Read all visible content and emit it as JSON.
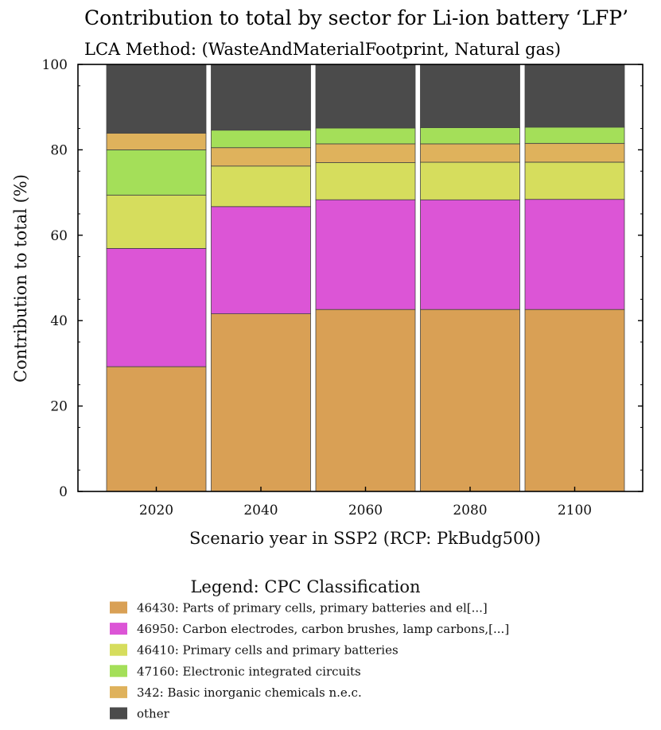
{
  "chart_data": {
    "type": "bar",
    "stacked": true,
    "title": "Contribution to total by sector for Li-ion battery ‘LFP’",
    "subtitle": "LCA Method: (WasteAndMaterialFootprint, Natural gas)",
    "xlabel": "Scenario year in SSP2 (RCP: PkBudg500)",
    "ylabel": "Contribution to total (%)",
    "ylim": [
      0,
      100
    ],
    "yticks": [
      0,
      20,
      40,
      60,
      80,
      100
    ],
    "categories": [
      "2020",
      "2040",
      "2060",
      "2080",
      "2100"
    ],
    "legend_title": "Legend: CPC Classification",
    "legend_position": "bottom",
    "series": [
      {
        "name": "46430: Parts of primary cells, primary batteries and el[...]",
        "color": "#d9a055",
        "values": [
          29.2,
          41.6,
          42.6,
          42.6,
          42.6
        ]
      },
      {
        "name": "46950: Carbon electrodes, carbon brushes, lamp carbons,[...]",
        "color": "#dc55d6",
        "values": [
          27.7,
          25.1,
          25.7,
          25.7,
          25.8
        ]
      },
      {
        "name": "46410: Primary cells and primary batteries",
        "color": "#d6dd5d",
        "values": [
          12.5,
          9.5,
          8.7,
          8.8,
          8.7
        ]
      },
      {
        "name": "47160: Electronic integrated circuits",
        "color": "#a4df59",
        "values": [
          10.6,
          0,
          0,
          0,
          0
        ]
      },
      {
        "name": "342: Basic inorganic chemicals n.e.c.",
        "color": "#dfb25c",
        "values": [
          3.9,
          4.3,
          4.4,
          4.3,
          4.4
        ]
      },
      {
        "name": "",
        "color": "#a4df59",
        "values": [
          0,
          4.1,
          3.7,
          3.8,
          3.8
        ]
      },
      {
        "name": "other",
        "color": "#4b4b4b",
        "values": [
          16.1,
          15.4,
          14.9,
          14.8,
          14.7
        ]
      }
    ]
  }
}
